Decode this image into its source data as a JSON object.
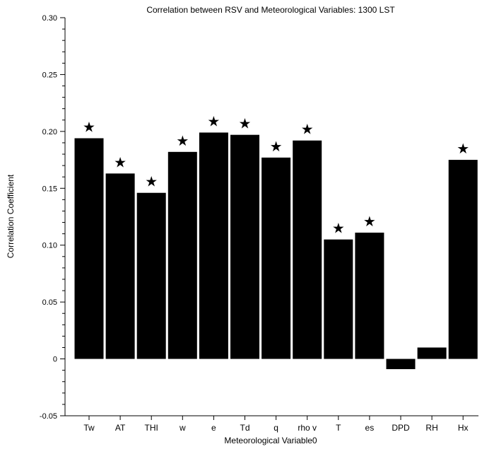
{
  "chart_data": {
    "type": "bar",
    "title": "Correlation between RSV and Meteorological Variables: 1300 LST",
    "xlabel": "Meteorological Variable0",
    "ylabel": "Correlation Coefficient",
    "ylim": [
      -0.05,
      0.3
    ],
    "yticks": [
      -0.05,
      0,
      0.05,
      0.1,
      0.15,
      0.2,
      0.25,
      0.3
    ],
    "ytick_labels": [
      "-0.05",
      "0",
      "0.05",
      "0.10",
      "0.15",
      "0.20",
      "0.25",
      "0.30"
    ],
    "categories": [
      "Tw",
      "AT",
      "THI",
      "w",
      "e",
      "Td",
      "q",
      "rho v",
      "T",
      "es",
      "DPD",
      "RH",
      "Hx"
    ],
    "values": [
      0.194,
      0.163,
      0.146,
      0.182,
      0.199,
      0.197,
      0.177,
      0.192,
      0.105,
      0.111,
      -0.009,
      0.01,
      0.175
    ],
    "significant": [
      true,
      true,
      true,
      true,
      true,
      true,
      true,
      true,
      true,
      true,
      false,
      false,
      true
    ],
    "significance_marker": "★",
    "bar_color": "#000000",
    "grid": false,
    "legend": false
  }
}
